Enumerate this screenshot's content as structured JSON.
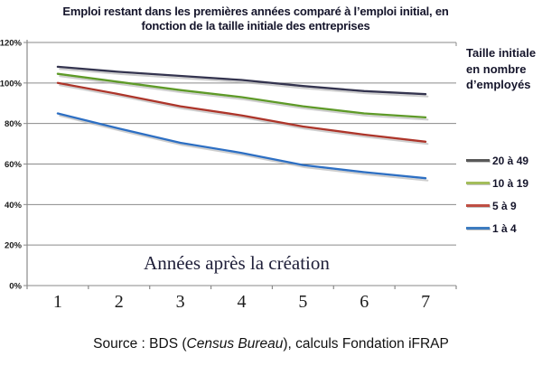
{
  "title_lines": {
    "0": "Emploi restant dans les premières années comparé à l’emploi initial, en",
    "1": "fonction de la taille initiale des entreprises"
  },
  "legend": {
    "heading": "Taille initiale en nombre d’employés",
    "items": [
      {
        "label": "20 à 49",
        "color": "#595959"
      },
      {
        "label": "10 à 19",
        "color": "#a3bd5b"
      },
      {
        "label": "5 à 9",
        "color": "#bf4e43"
      },
      {
        "label": "1 à 4",
        "color": "#3d7cc0"
      }
    ]
  },
  "chart_data": {
    "type": "line",
    "x": [
      1,
      2,
      3,
      4,
      5,
      6,
      7
    ],
    "xlabel_inside": "Années après la création",
    "series": [
      {
        "name": "20 à 49",
        "color": "#34344f",
        "values": [
          108,
          105.5,
          103.5,
          101.5,
          98.5,
          96,
          94.5
        ]
      },
      {
        "name": "10 à 19",
        "color": "#5e9a28",
        "values": [
          104.5,
          100.5,
          96.5,
          93,
          88.5,
          85,
          83
        ]
      },
      {
        "name": "5 à 9",
        "color": "#ad352a",
        "values": [
          100,
          94.5,
          88.5,
          84,
          78.5,
          74.5,
          71
        ]
      },
      {
        "name": "1 à 4",
        "color": "#2d6fc3",
        "values": [
          85,
          77.5,
          70.5,
          65.5,
          59.5,
          56,
          53
        ]
      }
    ],
    "ylim": [
      0,
      120
    ],
    "ytick_step": 20,
    "ytick_labels": [
      "0%",
      "20%",
      "40%",
      "60%",
      "80%",
      "100%",
      "120%"
    ],
    "grid": true,
    "legend_position": "right",
    "shadow_color": "#b3b3b3",
    "grid_color": "#8a8a8a",
    "text_color": "#1c1c1c",
    "inside_label_color": "#20203a"
  },
  "source": {
    "prefix": "Source : BDS (",
    "italic": "Census Bureau",
    "suffix": "), calculs Fondation iFRAP"
  }
}
